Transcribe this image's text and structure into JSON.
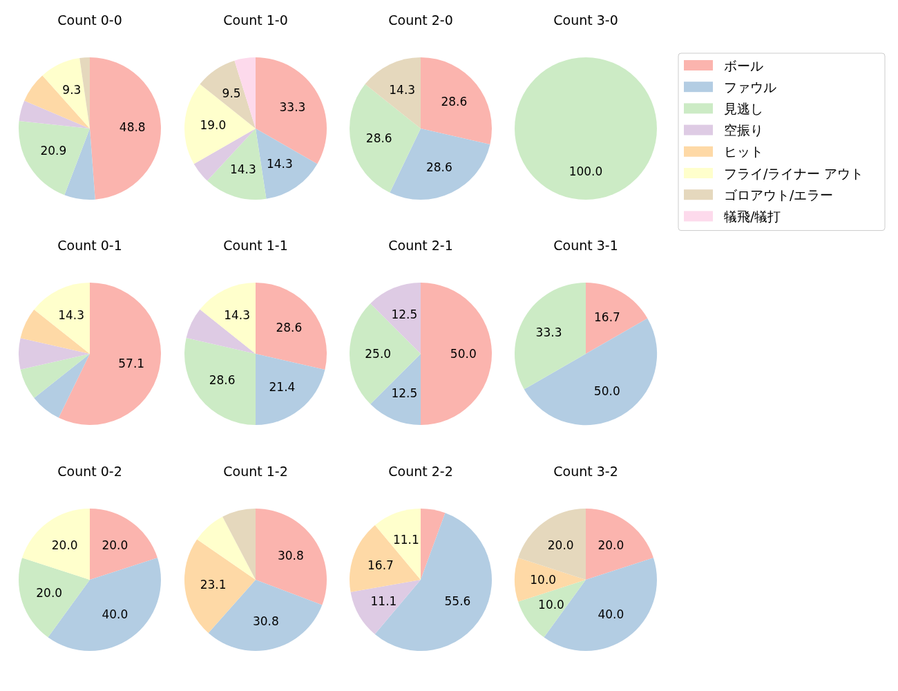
{
  "chart_data": [
    {
      "type": "pie",
      "title": "Count 0-0",
      "legend": "right",
      "categories": [
        "ボール",
        "ファウル",
        "見逃し",
        "空振り",
        "ヒット",
        "フライ/ライナー アウト",
        "ゴロアウト/エラー",
        "犠飛/犠打"
      ],
      "colors": [
        "#fbb4ae",
        "#b3cde3",
        "#ccebc5",
        "#decbe4",
        "#fed9a6",
        "#ffffcc",
        "#e5d8bd",
        "#fddaec"
      ],
      "values": [
        48.8,
        7.0,
        20.9,
        4.7,
        7.0,
        9.3,
        2.3,
        0
      ],
      "value_labels": [
        "48.8",
        null,
        "20.9",
        null,
        null,
        "9.3",
        null,
        null
      ]
    },
    {
      "type": "pie",
      "title": "Count 1-0",
      "categories": [
        null,
        null,
        null,
        null,
        null,
        null,
        null
      ],
      "colors": [
        "#fbb4ae",
        "#b3cde3",
        "#ccebc5",
        "#decbe4",
        "#ffffcc",
        "#e5d8bd",
        "#fddaec"
      ],
      "values": [
        33.3,
        14.3,
        14.3,
        4.8,
        19.0,
        9.5,
        4.8
      ],
      "value_labels": [
        "33.3",
        "14.3",
        "14.3",
        null,
        "19.0",
        "9.5",
        null
      ]
    },
    {
      "type": "pie",
      "title": "Count 2-0",
      "categories": [
        null,
        null,
        null,
        null
      ],
      "colors": [
        "#fbb4ae",
        "#b3cde3",
        "#ccebc5",
        "#e5d8bd"
      ],
      "values": [
        28.6,
        28.6,
        28.6,
        14.3
      ],
      "data_labels": true
    },
    {
      "type": "pie",
      "title": "Count 3-0",
      "categories": [
        null
      ],
      "colors": [
        "#ccebc5"
      ],
      "values": [
        100.0
      ],
      "value_labels": [
        "100.0"
      ]
    },
    {
      "type": "pie",
      "title": "Count 0-1",
      "categories": [
        null,
        null,
        null,
        null,
        null,
        null
      ],
      "colors": [
        "#fbb4ae",
        "#b3cde3",
        "#ccebc5",
        "#decbe4",
        "#fed9a6",
        "#ffffcc"
      ],
      "values": [
        57.1,
        7.1,
        7.1,
        7.1,
        7.1,
        14.3
      ],
      "value_labels": [
        "57.1",
        null,
        null,
        null,
        null,
        "14.3"
      ]
    },
    {
      "type": "pie",
      "title": "Count 1-1",
      "categories": [
        null,
        null,
        null,
        null,
        null
      ],
      "colors": [
        "#fbb4ae",
        "#b3cde3",
        "#ccebc5",
        "#decbe4",
        "#ffffcc"
      ],
      "values": [
        28.6,
        21.4,
        28.6,
        7.1,
        14.3
      ],
      "value_labels": [
        "28.6",
        "21.4",
        "28.6",
        null,
        "14.3"
      ]
    },
    {
      "type": "pie",
      "title": "Count 2-1",
      "categories": [
        null,
        null,
        null,
        null
      ],
      "colors": [
        "#fbb4ae",
        "#b3cde3",
        "#ccebc5",
        "#decbe4"
      ],
      "values": [
        50.0,
        12.5,
        25.0,
        12.5
      ],
      "value_labels": [
        "50.0",
        "12.5",
        "25.0",
        "12.5"
      ]
    },
    {
      "type": "pie",
      "title": "Count 3-1",
      "categories": [
        null,
        null,
        null
      ],
      "colors": [
        "#fbb4ae",
        "#b3cde3",
        "#ccebc5"
      ],
      "values": [
        16.7,
        50.0,
        33.3
      ],
      "value_labels": [
        "16.7",
        "50.0",
        "33.3"
      ]
    },
    {
      "type": "pie",
      "title": "Count 0-2",
      "categories": [
        null,
        null,
        null,
        null
      ],
      "colors": [
        "#fbb4ae",
        "#b3cde3",
        "#ccebc5",
        "#ffffcc"
      ],
      "values": [
        20.0,
        40.0,
        20.0,
        20.0
      ],
      "value_labels": [
        "20.0",
        "40.0",
        "20.0",
        "20.0"
      ]
    },
    {
      "type": "pie",
      "title": "Count 1-2",
      "categories": [
        null,
        null,
        null,
        null,
        null
      ],
      "colors": [
        "#fbb4ae",
        "#b3cde3",
        "#fed9a6",
        "#ffffcc",
        "#e5d8bd"
      ],
      "values": [
        30.8,
        30.8,
        23.1,
        7.7,
        7.7
      ],
      "value_labels": [
        "30.8",
        "30.8",
        "23.1",
        null,
        null
      ]
    },
    {
      "type": "pie",
      "title": "Count 2-2",
      "categories": [
        null,
        null,
        null,
        null,
        null
      ],
      "colors": [
        "#fbb4ae",
        "#b3cde3",
        "#decbe4",
        "#fed9a6",
        "#ffffcc"
      ],
      "values": [
        5.6,
        55.6,
        11.1,
        16.7,
        11.1
      ],
      "value_labels": [
        null,
        "55.6",
        "11.1",
        "16.7",
        "11.1"
      ]
    },
    {
      "type": "pie",
      "title": "Count 3-2",
      "categories": [
        null,
        null,
        null,
        null,
        null
      ],
      "colors": [
        "#fbb4ae",
        "#b3cde3",
        "#ccebc5",
        "#fed9a6",
        "#e5d8bd"
      ],
      "values": [
        20.0,
        40.0,
        10.0,
        10.0,
        20.0
      ],
      "value_labels": [
        "20.0",
        "40.0",
        "10.0",
        "10.0",
        "20.0"
      ]
    }
  ]
}
